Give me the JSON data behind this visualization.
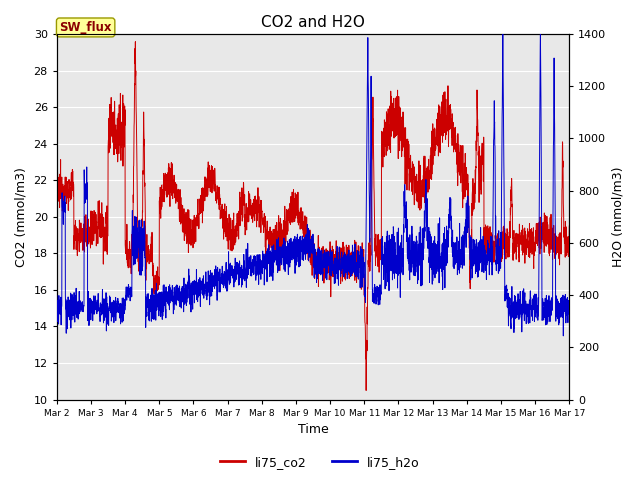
{
  "title": "CO2 and H2O",
  "xlabel": "Time",
  "ylabel_left": "CO2 (mmol/m3)",
  "ylabel_right": "H2O (mmol/m3)",
  "ylim_left": [
    10,
    30
  ],
  "ylim_right": [
    0,
    1400
  ],
  "yticks_left": [
    10,
    12,
    14,
    16,
    18,
    20,
    22,
    24,
    26,
    28,
    30
  ],
  "yticks_right": [
    0,
    200,
    400,
    600,
    800,
    1000,
    1200,
    1400
  ],
  "xtick_labels": [
    "Mar 2",
    "Mar 3",
    "Mar 4",
    "Mar 5",
    "Mar 6",
    "Mar 7",
    "Mar 8",
    "Mar 9",
    "Mar 10",
    "Mar 11",
    "Mar 12",
    "Mar 13",
    "Mar 14",
    "Mar 15",
    "Mar 16",
    "Mar 17"
  ],
  "co2_color": "#cc0000",
  "h2o_color": "#0000cc",
  "bg_color": "#e8e8e8",
  "annotation_text": "SW_flux",
  "annotation_facecolor": "#ffff99",
  "annotation_edgecolor": "#999900",
  "annotation_textcolor": "#8b0000",
  "legend_co2": "li75_co2",
  "legend_h2o": "li75_h2o",
  "grid_color": "white",
  "fig_facecolor": "white",
  "figsize": [
    6.4,
    4.8
  ],
  "dpi": 100
}
